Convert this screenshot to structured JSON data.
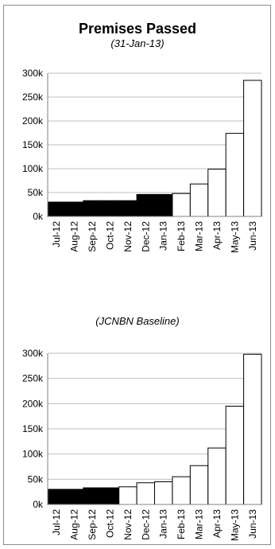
{
  "chart_data": [
    {
      "type": "bar",
      "title": "Premises Passed",
      "subtitle": "(31-Jan-13)",
      "categories": [
        "Jul-12",
        "Aug-12",
        "Sep-12",
        "Oct-12",
        "Nov-12",
        "Dec-12",
        "Jan-13",
        "Feb-13",
        "Mar-13",
        "Apr-13",
        "May-13",
        "Jun-13"
      ],
      "values": [
        30000,
        30000,
        33000,
        33000,
        33000,
        46000,
        46000,
        48000,
        68000,
        99000,
        174000,
        285000
      ],
      "actual_count": 7,
      "colors": {
        "actual": "#000000",
        "forecast": "#ffffff"
      },
      "yticks": [
        "0k",
        "50k",
        "100k",
        "150k",
        "200k",
        "250k",
        "300k"
      ],
      "ylim": [
        0,
        300000
      ],
      "grid": true
    },
    {
      "type": "bar",
      "title": "",
      "subtitle": "(JCNBN Baseline)",
      "categories": [
        "Jul-12",
        "Aug-12",
        "Sep-12",
        "Oct-12",
        "Nov-12",
        "Dec-12",
        "Jan-13",
        "Feb-13",
        "Mar-13",
        "Apr-13",
        "May-13",
        "Jun-13"
      ],
      "values": [
        30000,
        30000,
        33000,
        33000,
        35000,
        43000,
        45000,
        55000,
        77000,
        112000,
        195000,
        298000
      ],
      "actual_count": 4,
      "colors": {
        "actual": "#000000",
        "forecast": "#ffffff"
      },
      "yticks": [
        "0k",
        "50k",
        "100k",
        "150k",
        "200k",
        "250k",
        "300k"
      ],
      "ylim": [
        0,
        300000
      ],
      "grid": true
    }
  ]
}
